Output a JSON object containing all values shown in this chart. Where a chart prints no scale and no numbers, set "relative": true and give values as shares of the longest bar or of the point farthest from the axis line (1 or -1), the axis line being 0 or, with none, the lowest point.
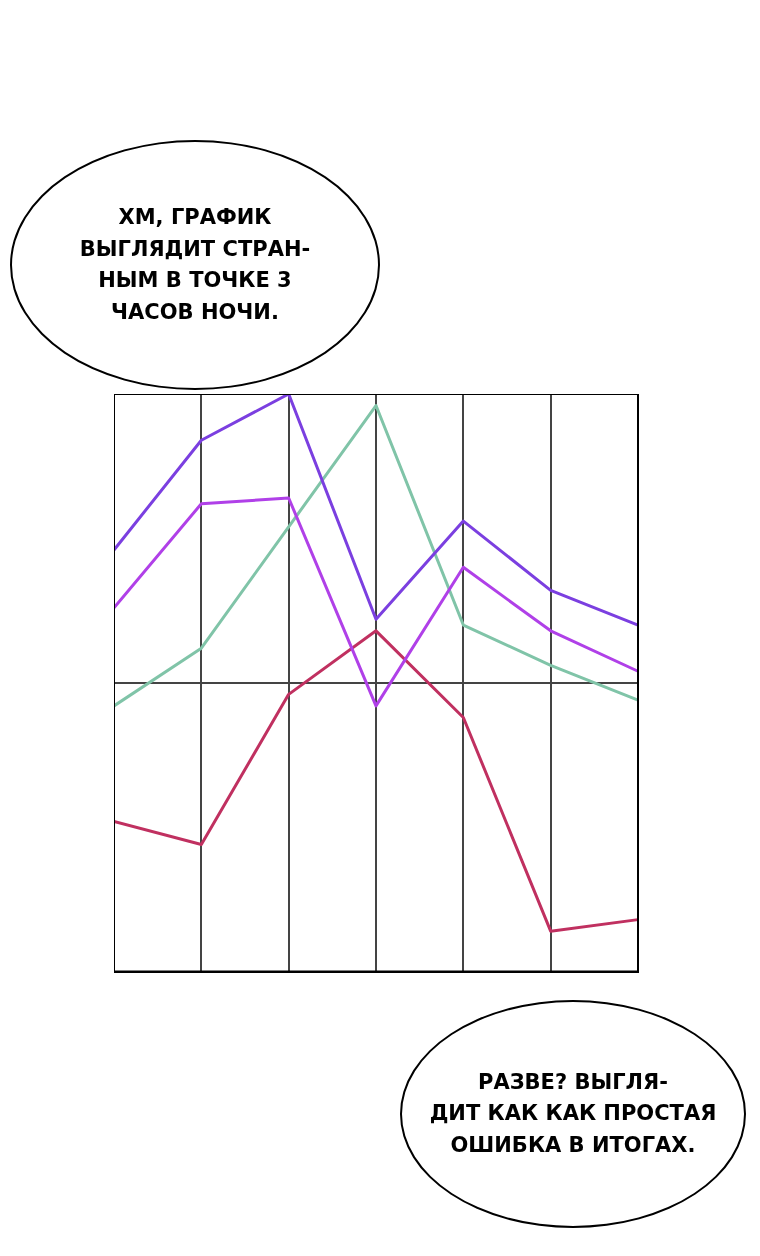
{
  "chart_data": {
    "type": "line",
    "relative": true,
    "grid": true,
    "legend": false,
    "marker": "none",
    "line_style": "solid",
    "categories": [
      null,
      null,
      null,
      null,
      null,
      null,
      null
    ],
    "series": [
      {
        "color": "#7b3fe0",
        "values": [
          0.73,
          0.92,
          1,
          0.61,
          0.78,
          0.66,
          0.6
        ]
      },
      {
        "color": "#b040e8",
        "values": [
          0.63,
          0.81,
          0.82,
          0.46,
          0.7,
          0.59,
          0.52
        ]
      },
      {
        "color": "#80c4a8",
        "values": [
          0.46,
          0.56,
          0.77,
          0.98,
          0.6,
          0.53,
          0.47
        ]
      },
      {
        "color": "#c03060",
        "values": [
          0.26,
          0.22,
          0.48,
          0.59,
          0.44,
          0.07,
          0.09
        ]
      }
    ],
    "annotations": [
      "ХМ, ГРАФИК\nВЫГЛЯДИТ СТРАН-\nНЫМ В ТОЧКЕ 3\nЧАСОВ НОЧИ.",
      "РАЗВЕ? ВЫГЛЯ-\nДИТ КАК КАК ПРОСТАЯ\nОШИБКА В ИТОГАХ."
    ]
  }
}
